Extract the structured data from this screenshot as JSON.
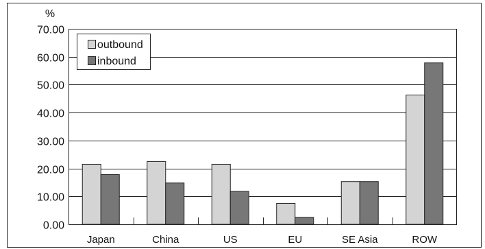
{
  "chart_data": {
    "type": "bar",
    "ylabel": "%",
    "ylim": [
      0,
      70
    ],
    "yticks": [
      "0.00",
      "10.00",
      "20.00",
      "30.00",
      "40.00",
      "50.00",
      "60.00",
      "70.00"
    ],
    "grid": true,
    "legend_position": "top-left",
    "categories": [
      "Japan",
      "China",
      "US",
      "EU",
      "SE Asia",
      "ROW"
    ],
    "series": [
      {
        "name": "outbound",
        "color": "#d4d4d4",
        "values": [
          21.5,
          22.5,
          21.5,
          7.5,
          15.3,
          46.3
        ]
      },
      {
        "name": "inbound",
        "color": "#777777",
        "values": [
          17.8,
          14.8,
          11.8,
          2.5,
          15.3,
          57.8
        ]
      }
    ]
  }
}
